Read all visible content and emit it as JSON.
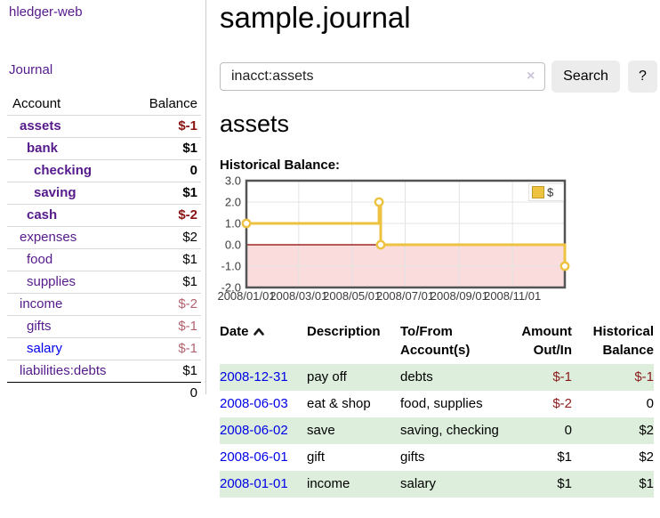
{
  "app": {
    "brand": "hledger-web"
  },
  "sidebar": {
    "journal_label": "Journal",
    "header": {
      "account": "Account",
      "balance": "Balance"
    },
    "accounts": [
      {
        "name": "assets",
        "balance": "$-1"
      },
      {
        "name": "bank",
        "balance": "$1"
      },
      {
        "name": "checking",
        "balance": "0"
      },
      {
        "name": "saving",
        "balance": "$1"
      },
      {
        "name": "cash",
        "balance": "$-2"
      },
      {
        "name": "expenses",
        "balance": "$2"
      },
      {
        "name": "food",
        "balance": "$1"
      },
      {
        "name": "supplies",
        "balance": "$1"
      },
      {
        "name": "income",
        "balance": "$-2"
      },
      {
        "name": "gifts",
        "balance": "$-1"
      },
      {
        "name": "salary",
        "balance": "$-1"
      },
      {
        "name": "liabilities:debts",
        "balance": "$1"
      }
    ],
    "total": "0"
  },
  "main": {
    "title": "sample.journal",
    "search": {
      "value": "inacct:assets",
      "clear_glyph": "×",
      "button_label": "Search",
      "help_label": "?"
    },
    "account_heading": "assets",
    "chart_label": "Historical Balance:"
  },
  "chart_data": {
    "type": "line",
    "step": true,
    "title": "Historical Balance (assets)",
    "series": [
      {
        "name": "$",
        "color": "#edc240",
        "points": [
          [
            "2008-01-01",
            1
          ],
          [
            "2008-06-01",
            2
          ],
          [
            "2008-06-03",
            0
          ],
          [
            "2008-12-31",
            -1
          ]
        ]
      }
    ],
    "x_ticks": [
      "2008/01/01",
      "2008/03/01",
      "2008/05/01",
      "2008/07/01",
      "2008/09/01",
      "2008/11/01"
    ],
    "y_ticks": [
      3.0,
      2.0,
      1.0,
      0.0,
      -1.0,
      -2.0
    ],
    "xlim": [
      "2008-01-01",
      "2008-12-31"
    ],
    "ylim": [
      -2,
      3
    ],
    "grid": true,
    "legend": {
      "label": "$",
      "position": "top-right",
      "swatch_color": "#edc240"
    },
    "negative_region_fill": "#fadcdc",
    "zero_line_color": "#8b0000",
    "border_color": "#545454",
    "gridline_color": "#e3e3e3",
    "tick_label_color": "#3c3c3c"
  },
  "register": {
    "headers": {
      "date": "Date",
      "description": "Description",
      "accounts": "To/From Account(s)",
      "amount": "Amount Out/In",
      "balance": "Historical Balance"
    },
    "rows": [
      {
        "date": "2008-12-31",
        "description": "pay off",
        "accounts": "debts",
        "amount": "$-1",
        "balance": "$-1"
      },
      {
        "date": "2008-06-03",
        "description": "eat & shop",
        "accounts": "food, supplies",
        "amount": "$-2",
        "balance": "0"
      },
      {
        "date": "2008-06-02",
        "description": "save",
        "accounts": "saving, checking",
        "amount": "0",
        "balance": "$2"
      },
      {
        "date": "2008-06-01",
        "description": "gift",
        "accounts": "gifts",
        "amount": "$1",
        "balance": "$2"
      },
      {
        "date": "2008-01-01",
        "description": "income",
        "accounts": "salary",
        "amount": "$1",
        "balance": "$1"
      }
    ]
  }
}
